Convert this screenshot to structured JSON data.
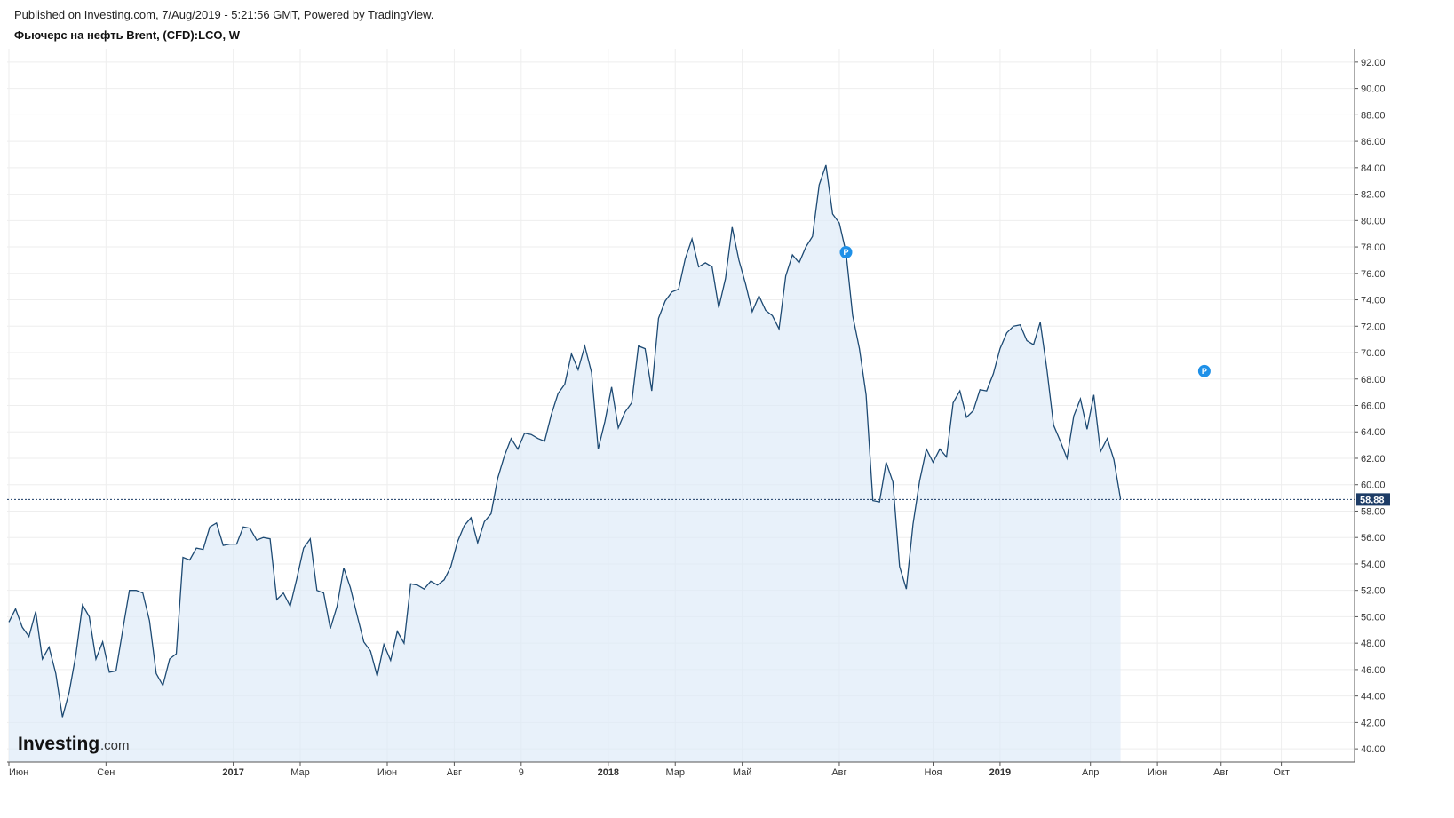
{
  "header": {
    "published": "Published on Investing.com, 7/Aug/2019 - 5:21:56 GMT, Powered by TradingView.",
    "title": "Фьючерс на нефть Brent, (CFD):LCO, W"
  },
  "logo": {
    "main": "Investing",
    "suffix": ".com"
  },
  "colors": {
    "line": "#1d4a73",
    "fill": "#dbe9f7",
    "last_label_bg": "#1d3c66",
    "badge": "#1e90e8",
    "grid": "#eeeeee"
  },
  "chart_data": {
    "type": "area",
    "title": "Фьючерс на нефть Brent, (CFD):LCO, W",
    "ylim": [
      39,
      93
    ],
    "y_ticks": [
      "40.00",
      "42.00",
      "44.00",
      "46.00",
      "48.00",
      "50.00",
      "52.00",
      "54.00",
      "56.00",
      "58.00",
      "60.00",
      "62.00",
      "64.00",
      "66.00",
      "68.00",
      "70.00",
      "72.00",
      "74.00",
      "76.00",
      "78.00",
      "80.00",
      "82.00",
      "84.00",
      "86.00",
      "88.00",
      "90.00",
      "92.00"
    ],
    "x_ticks": [
      {
        "label": "Июн",
        "week": 0,
        "bold": false
      },
      {
        "label": "Сен",
        "week": 14.5,
        "bold": false
      },
      {
        "label": "2017",
        "week": 33.5,
        "bold": true
      },
      {
        "label": "Мар",
        "week": 43.5,
        "bold": false
      },
      {
        "label": "Июн",
        "week": 56.5,
        "bold": false
      },
      {
        "label": "Авг",
        "week": 66.5,
        "bold": false
      },
      {
        "label": "9",
        "week": 76.5,
        "bold": false
      },
      {
        "label": "2018",
        "week": 89.5,
        "bold": true
      },
      {
        "label": "Мар",
        "week": 99.5,
        "bold": false
      },
      {
        "label": "Май",
        "week": 109.5,
        "bold": false
      },
      {
        "label": "Авг",
        "week": 124,
        "bold": false
      },
      {
        "label": "Ноя",
        "week": 138,
        "bold": false
      },
      {
        "label": "2019",
        "week": 148,
        "bold": true
      },
      {
        "label": "Апр",
        "week": 161.5,
        "bold": false
      },
      {
        "label": "Июн",
        "week": 171.5,
        "bold": false
      },
      {
        "label": "Авг",
        "week": 181,
        "bold": false
      },
      {
        "label": "Окт",
        "week": 190,
        "bold": false
      }
    ],
    "series": [
      {
        "values": [
          49.6,
          50.6,
          49.2,
          48.5,
          50.4,
          46.8,
          47.7,
          45.7,
          42.4,
          44.3,
          47.1,
          50.9,
          50.0,
          46.8,
          48.1,
          45.8,
          45.9,
          49.0,
          52.0,
          52.0,
          51.8,
          49.7,
          45.7,
          44.8,
          46.8,
          47.2,
          54.5,
          54.3,
          55.2,
          55.1,
          56.8,
          57.1,
          55.4,
          55.5,
          55.5,
          56.8,
          56.7,
          55.8,
          56.0,
          55.9,
          51.3,
          51.8,
          50.8,
          52.9,
          55.2,
          55.9,
          52.0,
          51.8,
          49.1,
          50.8,
          53.7,
          52.2,
          50.1,
          48.1,
          47.4,
          45.5,
          47.9,
          46.7,
          48.9,
          48.0,
          52.5,
          52.4,
          52.1,
          52.7,
          52.4,
          52.8,
          53.8,
          55.7,
          56.9,
          57.5,
          55.6,
          57.2,
          57.8,
          60.5,
          62.2,
          63.5,
          62.7,
          63.9,
          63.8,
          63.5,
          63.3,
          65.3,
          66.9,
          67.6,
          69.9,
          68.7,
          70.5,
          68.5,
          62.7,
          64.8,
          67.4,
          64.3,
          65.5,
          66.2,
          70.5,
          70.3,
          67.1,
          72.6,
          73.9,
          74.6,
          74.8,
          77.1,
          78.6,
          76.5,
          76.8,
          76.5,
          73.4,
          75.6,
          79.5,
          77.0,
          75.2,
          73.1,
          74.3,
          73.2,
          72.8,
          71.8,
          75.8,
          77.4,
          76.8,
          78.0,
          78.8,
          82.7,
          84.2,
          80.5,
          79.8,
          77.6,
          72.8,
          70.3,
          66.8,
          58.8,
          58.7,
          61.7,
          60.2,
          53.8,
          52.1,
          57.0,
          60.3,
          62.7,
          61.7,
          62.7,
          62.1,
          66.2,
          67.1,
          65.1,
          65.6,
          67.2,
          67.1,
          68.4,
          70.3,
          71.5,
          72.0,
          72.1,
          70.9,
          70.6,
          72.3,
          68.7,
          64.5,
          63.3,
          62.0,
          65.2,
          66.5,
          64.2,
          66.8,
          62.5,
          63.5,
          61.9,
          58.9
        ]
      }
    ],
    "last_value": "58.88",
    "annotations": [
      {
        "type": "badge",
        "label": "P",
        "week": 125,
        "value": 77.6
      },
      {
        "type": "badge",
        "label": "P",
        "week": 178.5,
        "value": 68.6
      }
    ]
  }
}
